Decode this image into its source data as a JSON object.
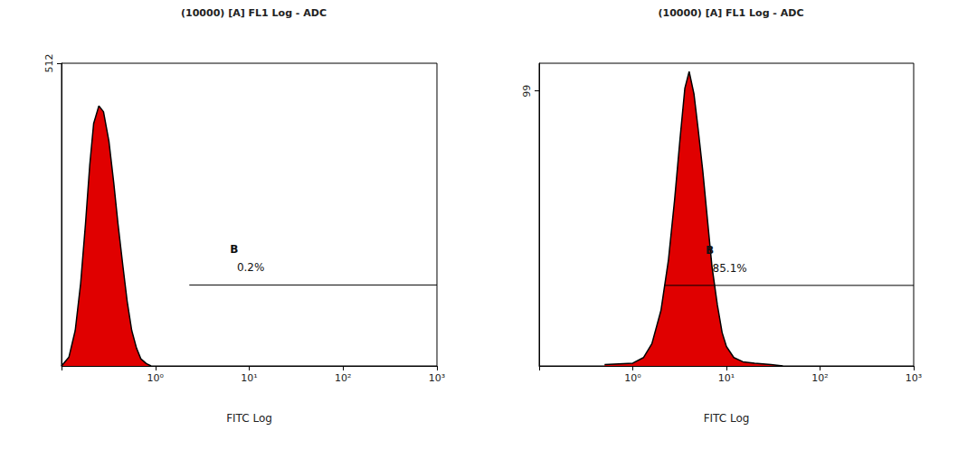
{
  "chart_data": [
    {
      "type": "area",
      "title": "(10000) [A] FL1 Log - ADC",
      "x_label": "FITC Log",
      "log": "x",
      "color": "#e00000",
      "x": [
        0.1,
        0.12,
        0.14,
        0.16,
        0.18,
        0.2,
        0.22,
        0.25,
        0.28,
        0.32,
        0.36,
        0.4,
        0.45,
        0.5,
        0.56,
        0.63,
        0.7,
        0.8,
        0.9
      ],
      "values": [
        0,
        15,
        60,
        140,
        240,
        340,
        410,
        440,
        430,
        380,
        310,
        240,
        170,
        110,
        60,
        30,
        12,
        4,
        0
      ],
      "xlim": [
        0.1,
        1000
      ],
      "xticks": [
        {
          "value": 1,
          "label": "10⁰"
        },
        {
          "value": 10,
          "label": "10¹"
        },
        {
          "value": 100,
          "label": "10²"
        },
        {
          "value": 1000,
          "label": "10³"
        }
      ],
      "ylim": [
        0,
        512
      ],
      "yticks": [
        512
      ],
      "gate": {
        "label": "B",
        "value_label": "0.2%",
        "x": [
          2.3,
          1000
        ],
        "y": 137
      }
    },
    {
      "type": "area",
      "title": "(10000) [A] FL1 Log - ADC",
      "x_label": "FITC Log",
      "log": "x",
      "color": "#e00000",
      "x": [
        0.5,
        1,
        1.3,
        1.6,
        2,
        2.4,
        2.8,
        3.2,
        3.6,
        4,
        4.5,
        5,
        5.6,
        6.3,
        7,
        8,
        9,
        10,
        12,
        15,
        20,
        30,
        40
      ],
      "values": [
        0.5,
        1,
        3,
        8,
        20,
        38,
        60,
        82,
        100,
        106,
        98,
        85,
        70,
        52,
        36,
        22,
        12,
        7,
        3,
        1.5,
        1,
        0.5,
        0
      ],
      "xlim": [
        0.1,
        1000
      ],
      "xticks": [
        {
          "value": 1,
          "label": "10⁰"
        },
        {
          "value": 10,
          "label": "10¹"
        },
        {
          "value": 100,
          "label": "10²"
        },
        {
          "value": 1000,
          "label": "10³"
        }
      ],
      "ylim": [
        0,
        109
      ],
      "yticks": [
        99
      ],
      "gate": {
        "label": "B",
        "value_label": "85.1%",
        "x": [
          2.2,
          1000
        ],
        "y": 29
      }
    }
  ]
}
